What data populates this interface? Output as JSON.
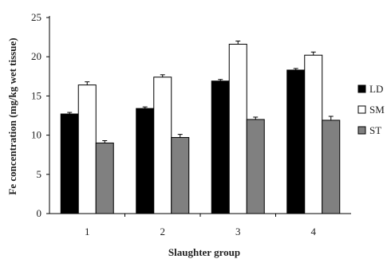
{
  "chart_data": {
    "type": "bar",
    "title": "",
    "xlabel": "Slaughter group",
    "ylabel": "Fe concentration (mg/kg wet tissue)",
    "categories": [
      "1",
      "2",
      "3",
      "4"
    ],
    "ylim": [
      0,
      25
    ],
    "yticks": [
      "0",
      "5",
      "10",
      "15",
      "20",
      "25"
    ],
    "series": [
      {
        "name": "LD",
        "color": "#000000",
        "values": [
          12.7,
          13.4,
          16.9,
          18.3
        ],
        "errors": [
          0.2,
          0.2,
          0.2,
          0.2
        ]
      },
      {
        "name": "SM",
        "color": "#ffffff",
        "values": [
          16.4,
          17.4,
          21.6,
          20.2
        ],
        "errors": [
          0.4,
          0.3,
          0.4,
          0.4
        ]
      },
      {
        "name": "ST",
        "color": "#808080",
        "values": [
          9.0,
          9.7,
          12.0,
          11.9
        ],
        "errors": [
          0.3,
          0.4,
          0.3,
          0.5
        ]
      }
    ],
    "grid": false,
    "legend_position": "right"
  }
}
